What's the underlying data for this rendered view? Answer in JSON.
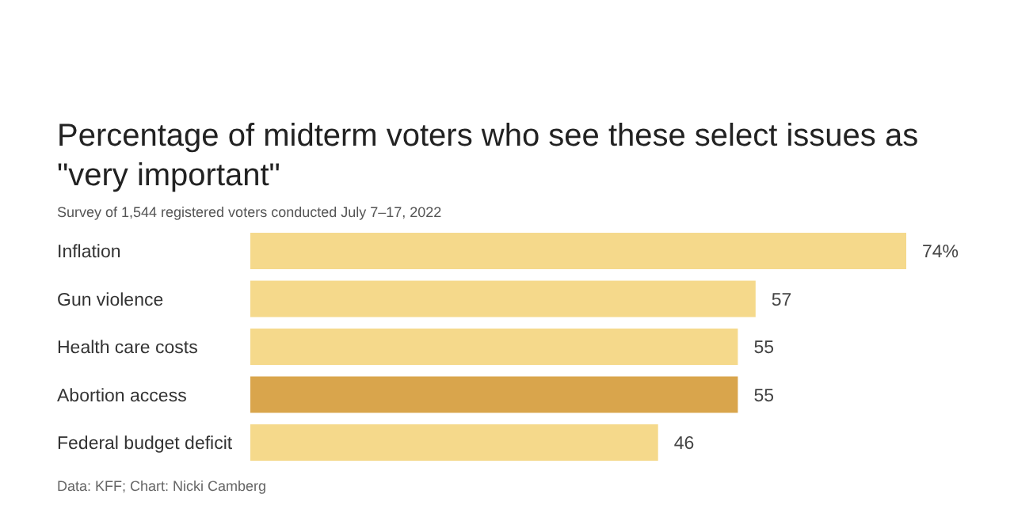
{
  "chart_data": {
    "type": "bar",
    "orientation": "horizontal",
    "title": "Percentage of midterm voters who see these select issues as \"very important\"",
    "subtitle": "Survey of 1,544 registered voters conducted July 7–17, 2022",
    "categories": [
      "Inflation",
      "Gun violence",
      "Health care costs",
      "Abortion access",
      "Federal budget deficit"
    ],
    "values": [
      74,
      57,
      55,
      55,
      46
    ],
    "colors": [
      "#f5d98b",
      "#f5d98b",
      "#f5d98b",
      "#d9a54c",
      "#f5d98b"
    ],
    "value_labels": [
      "74%",
      "57",
      "55",
      "55",
      "46"
    ],
    "annotations": [
      "Data: KFF; Chart: Nicki Camberg"
    ]
  }
}
